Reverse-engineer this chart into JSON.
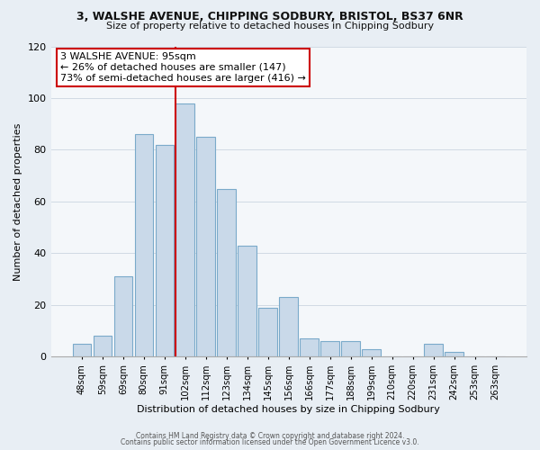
{
  "title": "3, WALSHE AVENUE, CHIPPING SODBURY, BRISTOL, BS37 6NR",
  "subtitle": "Size of property relative to detached houses in Chipping Sodbury",
  "xlabel": "Distribution of detached houses by size in Chipping Sodbury",
  "ylabel": "Number of detached properties",
  "bar_labels": [
    "48sqm",
    "59sqm",
    "69sqm",
    "80sqm",
    "91sqm",
    "102sqm",
    "112sqm",
    "123sqm",
    "134sqm",
    "145sqm",
    "156sqm",
    "166sqm",
    "177sqm",
    "188sqm",
    "199sqm",
    "210sqm",
    "220sqm",
    "231sqm",
    "242sqm",
    "253sqm",
    "263sqm"
  ],
  "bar_values": [
    5,
    8,
    31,
    86,
    82,
    98,
    85,
    65,
    43,
    19,
    23,
    7,
    6,
    6,
    3,
    0,
    0,
    5,
    2,
    0,
    0
  ],
  "bar_color": "#c9d9e9",
  "bar_edge_color": "#7aaaca",
  "ylim": [
    0,
    120
  ],
  "yticks": [
    0,
    20,
    40,
    60,
    80,
    100,
    120
  ],
  "annotation_text_line1": "3 WALSHE AVENUE: 95sqm",
  "annotation_text_line2": "← 26% of detached houses are smaller (147)",
  "annotation_text_line3": "73% of semi-detached houses are larger (416) →",
  "footer_line1": "Contains HM Land Registry data © Crown copyright and database right 2024.",
  "footer_line2": "Contains public sector information licensed under the Open Government Licence v3.0.",
  "bg_color": "#e8eef4",
  "plot_bg_color": "#f4f7fa",
  "grid_color": "#d0dae4",
  "red_line_color": "#cc0000",
  "ann_box_edge_color": "#cc0000"
}
